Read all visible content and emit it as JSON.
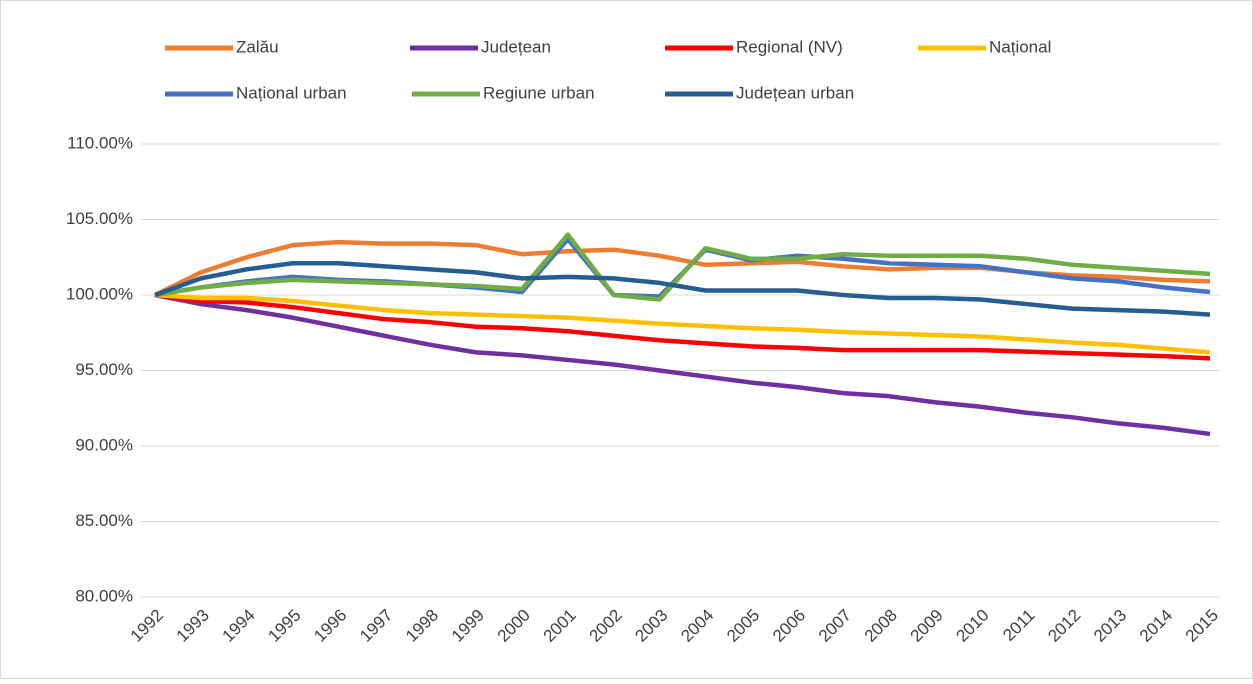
{
  "chart_data": {
    "type": "line",
    "categories": [
      "1992",
      "1993",
      "1994",
      "1995",
      "1996",
      "1997",
      "1998",
      "1999",
      "2000",
      "2001",
      "2002",
      "2003",
      "2004",
      "2005",
      "2006",
      "2007",
      "2008",
      "2009",
      "2010",
      "2011",
      "2012",
      "2013",
      "2014",
      "2015"
    ],
    "series": [
      {
        "name": "Zalău",
        "color": "#ed7d31",
        "values": [
          100,
          101.5,
          102.5,
          103.3,
          103.5,
          103.4,
          103.4,
          103.3,
          102.7,
          102.9,
          103.0,
          102.6,
          102.0,
          102.1,
          102.2,
          101.9,
          101.7,
          101.8,
          101.8,
          101.5,
          101.3,
          101.2,
          101.0,
          100.9
        ]
      },
      {
        "name": "Județean",
        "color": "#7030a0",
        "values": [
          100,
          99.4,
          99.0,
          98.5,
          97.9,
          97.3,
          96.7,
          96.2,
          96.0,
          95.7,
          95.4,
          95.0,
          94.6,
          94.2,
          93.9,
          93.5,
          93.3,
          92.9,
          92.6,
          92.2,
          91.9,
          91.5,
          91.2,
          90.8
        ]
      },
      {
        "name": "Regional (NV)",
        "color": "#ff0000",
        "values": [
          100,
          99.6,
          99.5,
          99.2,
          98.8,
          98.4,
          98.2,
          97.9,
          97.8,
          97.6,
          97.3,
          97.0,
          96.8,
          96.6,
          96.5,
          96.35,
          96.35,
          96.35,
          96.35,
          96.25,
          96.15,
          96.05,
          95.95,
          95.8
        ]
      },
      {
        "name": "Național",
        "color": "#ffc000",
        "values": [
          100,
          99.8,
          99.8,
          99.6,
          99.3,
          99.0,
          98.8,
          98.7,
          98.6,
          98.5,
          98.3,
          98.1,
          97.95,
          97.8,
          97.7,
          97.55,
          97.45,
          97.35,
          97.25,
          97.05,
          96.85,
          96.7,
          96.45,
          96.2
        ]
      },
      {
        "name": "Național urban",
        "color": "#4472c4",
        "values": [
          100,
          100.5,
          100.9,
          101.2,
          101.0,
          100.9,
          100.7,
          100.5,
          100.2,
          103.7,
          100.0,
          99.9,
          103.0,
          102.3,
          102.6,
          102.4,
          102.1,
          102.0,
          101.9,
          101.5,
          101.1,
          100.9,
          100.5,
          100.2
        ]
      },
      {
        "name": "Regiune urban",
        "color": "#70ad47",
        "values": [
          100,
          100.5,
          100.8,
          101.0,
          100.9,
          100.8,
          100.7,
          100.6,
          100.4,
          104.0,
          100.0,
          99.7,
          103.1,
          102.4,
          102.4,
          102.7,
          102.6,
          102.6,
          102.6,
          102.4,
          102.0,
          101.8,
          101.6,
          101.4
        ]
      },
      {
        "name": "Județean urban",
        "color": "#255e91",
        "values": [
          100,
          101.1,
          101.7,
          102.1,
          102.1,
          101.9,
          101.7,
          101.5,
          101.1,
          101.2,
          101.1,
          100.8,
          100.3,
          100.3,
          100.3,
          100.0,
          99.8,
          99.8,
          99.7,
          99.4,
          99.1,
          99.0,
          98.9,
          98.7
        ]
      }
    ],
    "ylim": [
      80,
      110
    ],
    "yticks": [
      {
        "value": 80,
        "label": "80.00%"
      },
      {
        "value": 85,
        "label": "85.00%"
      },
      {
        "value": 90,
        "label": "90.00%"
      },
      {
        "value": 95,
        "label": "95.00%"
      },
      {
        "value": 100,
        "label": "100.00%"
      },
      {
        "value": 105,
        "label": "105.00%"
      },
      {
        "value": 110,
        "label": "110.00%"
      }
    ],
    "grid": true,
    "legend": "top"
  }
}
